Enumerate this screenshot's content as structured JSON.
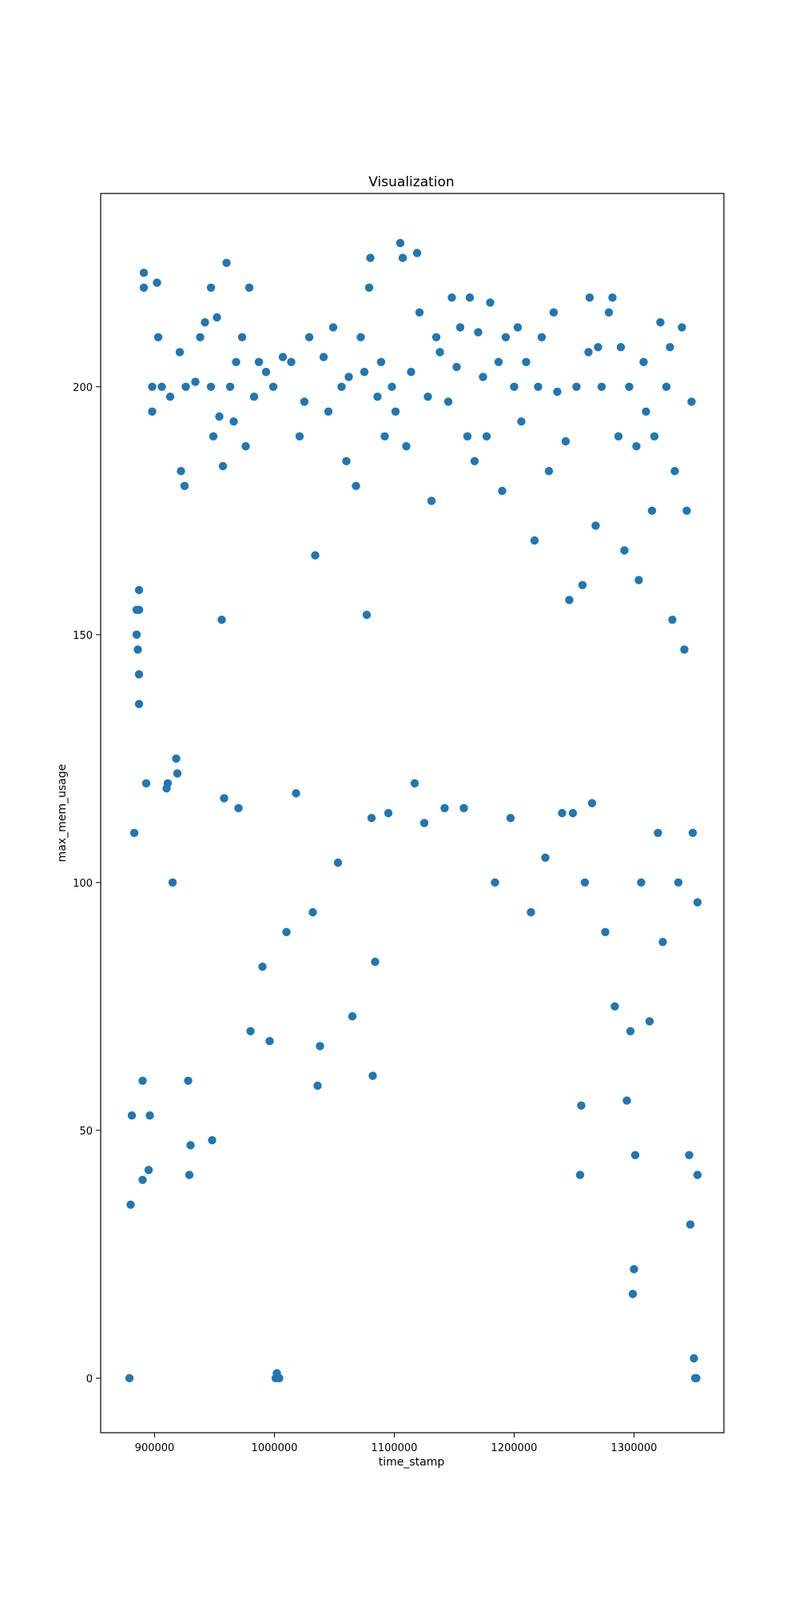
{
  "chart_data": {
    "type": "scatter",
    "title": "Visualization",
    "xlabel": "time_stamp",
    "ylabel": "max_mem_usage",
    "xlim": [
      855000,
      1375000
    ],
    "ylim": [
      -11,
      239
    ],
    "xticks": [
      900000,
      1000000,
      1100000,
      1200000,
      1300000
    ],
    "xtick_labels": [
      "900000",
      "1000000",
      "1100000",
      "1200000",
      "1300000"
    ],
    "yticks": [
      0,
      50,
      100,
      150,
      200
    ],
    "ytick_labels": [
      "0",
      "50",
      "100",
      "150",
      "200"
    ],
    "grid": false,
    "legend": "none",
    "marker_color": "#1f77b4",
    "series": [
      {
        "points": [
          [
            879000,
            0
          ],
          [
            880000,
            35
          ],
          [
            881000,
            53
          ],
          [
            883000,
            110
          ],
          [
            885000,
            150
          ],
          [
            885000,
            155
          ],
          [
            886000,
            147
          ],
          [
            887000,
            136
          ],
          [
            887000,
            142
          ],
          [
            887000,
            155
          ],
          [
            887000,
            159
          ],
          [
            890000,
            40
          ],
          [
            890000,
            60
          ],
          [
            891000,
            223
          ],
          [
            891000,
            220
          ],
          [
            893000,
            120
          ],
          [
            895000,
            42
          ],
          [
            896000,
            53
          ],
          [
            898000,
            200
          ],
          [
            898000,
            195
          ],
          [
            902000,
            221
          ],
          [
            903000,
            210
          ],
          [
            906000,
            200
          ],
          [
            910000,
            119
          ],
          [
            911000,
            120
          ],
          [
            913000,
            198
          ],
          [
            915000,
            100
          ],
          [
            918000,
            125
          ],
          [
            919000,
            122
          ],
          [
            921000,
            207
          ],
          [
            922000,
            183
          ],
          [
            925000,
            180
          ],
          [
            926000,
            200
          ],
          [
            928000,
            60
          ],
          [
            929000,
            41
          ],
          [
            930000,
            47
          ],
          [
            934000,
            201
          ],
          [
            938000,
            210
          ],
          [
            942000,
            213
          ],
          [
            947000,
            200
          ],
          [
            947000,
            220
          ],
          [
            948000,
            48
          ],
          [
            949000,
            190
          ],
          [
            952000,
            214
          ],
          [
            954000,
            194
          ],
          [
            956000,
            153
          ],
          [
            957000,
            184
          ],
          [
            958000,
            117
          ],
          [
            960000,
            225
          ],
          [
            963000,
            200
          ],
          [
            966000,
            193
          ],
          [
            968000,
            205
          ],
          [
            970000,
            115
          ],
          [
            973000,
            210
          ],
          [
            976000,
            188
          ],
          [
            979000,
            220
          ],
          [
            980000,
            70
          ],
          [
            983000,
            198
          ],
          [
            987000,
            205
          ],
          [
            990000,
            83
          ],
          [
            993000,
            203
          ],
          [
            996000,
            68
          ],
          [
            999000,
            200
          ],
          [
            1001000,
            0
          ],
          [
            1002000,
            1
          ],
          [
            1004000,
            0
          ],
          [
            1007000,
            206
          ],
          [
            1010000,
            90
          ],
          [
            1014000,
            205
          ],
          [
            1018000,
            118
          ],
          [
            1021000,
            190
          ],
          [
            1025000,
            197
          ],
          [
            1029000,
            210
          ],
          [
            1032000,
            94
          ],
          [
            1034000,
            166
          ],
          [
            1036000,
            59
          ],
          [
            1038000,
            67
          ],
          [
            1041000,
            206
          ],
          [
            1045000,
            195
          ],
          [
            1049000,
            212
          ],
          [
            1053000,
            104
          ],
          [
            1056000,
            200
          ],
          [
            1060000,
            185
          ],
          [
            1062000,
            202
          ],
          [
            1065000,
            73
          ],
          [
            1068000,
            180
          ],
          [
            1072000,
            210
          ],
          [
            1075000,
            203
          ],
          [
            1077000,
            154
          ],
          [
            1079000,
            220
          ],
          [
            1080000,
            226
          ],
          [
            1081000,
            113
          ],
          [
            1082000,
            61
          ],
          [
            1084000,
            84
          ],
          [
            1086000,
            198
          ],
          [
            1089000,
            205
          ],
          [
            1092000,
            190
          ],
          [
            1095000,
            114
          ],
          [
            1098000,
            200
          ],
          [
            1101000,
            195
          ],
          [
            1105000,
            229
          ],
          [
            1107000,
            226
          ],
          [
            1110000,
            188
          ],
          [
            1114000,
            203
          ],
          [
            1117000,
            120
          ],
          [
            1119000,
            227
          ],
          [
            1121000,
            215
          ],
          [
            1125000,
            112
          ],
          [
            1128000,
            198
          ],
          [
            1131000,
            177
          ],
          [
            1135000,
            210
          ],
          [
            1138000,
            207
          ],
          [
            1142000,
            115
          ],
          [
            1145000,
            197
          ],
          [
            1148000,
            218
          ],
          [
            1152000,
            204
          ],
          [
            1155000,
            212
          ],
          [
            1158000,
            115
          ],
          [
            1161000,
            190
          ],
          [
            1163000,
            218
          ],
          [
            1167000,
            185
          ],
          [
            1170000,
            211
          ],
          [
            1174000,
            202
          ],
          [
            1177000,
            190
          ],
          [
            1180000,
            217
          ],
          [
            1184000,
            100
          ],
          [
            1187000,
            205
          ],
          [
            1190000,
            179
          ],
          [
            1193000,
            210
          ],
          [
            1197000,
            113
          ],
          [
            1200000,
            200
          ],
          [
            1203000,
            212
          ],
          [
            1206000,
            193
          ],
          [
            1210000,
            205
          ],
          [
            1214000,
            94
          ],
          [
            1217000,
            169
          ],
          [
            1220000,
            200
          ],
          [
            1223000,
            210
          ],
          [
            1226000,
            105
          ],
          [
            1229000,
            183
          ],
          [
            1233000,
            215
          ],
          [
            1236000,
            199
          ],
          [
            1240000,
            114
          ],
          [
            1243000,
            189
          ],
          [
            1246000,
            157
          ],
          [
            1249000,
            114
          ],
          [
            1252000,
            200
          ],
          [
            1255000,
            41
          ],
          [
            1256000,
            55
          ],
          [
            1257000,
            160
          ],
          [
            1259000,
            100
          ],
          [
            1262000,
            207
          ],
          [
            1263000,
            218
          ],
          [
            1265000,
            116
          ],
          [
            1268000,
            172
          ],
          [
            1270000,
            208
          ],
          [
            1273000,
            200
          ],
          [
            1276000,
            90
          ],
          [
            1279000,
            215
          ],
          [
            1282000,
            218
          ],
          [
            1284000,
            75
          ],
          [
            1287000,
            190
          ],
          [
            1289000,
            208
          ],
          [
            1292000,
            167
          ],
          [
            1294000,
            56
          ],
          [
            1296000,
            200
          ],
          [
            1297000,
            70
          ],
          [
            1299000,
            17
          ],
          [
            1300000,
            22
          ],
          [
            1301000,
            45
          ],
          [
            1302000,
            188
          ],
          [
            1304000,
            161
          ],
          [
            1306000,
            100
          ],
          [
            1308000,
            205
          ],
          [
            1310000,
            195
          ],
          [
            1313000,
            72
          ],
          [
            1315000,
            175
          ],
          [
            1317000,
            190
          ],
          [
            1320000,
            110
          ],
          [
            1322000,
            213
          ],
          [
            1324000,
            88
          ],
          [
            1327000,
            200
          ],
          [
            1330000,
            208
          ],
          [
            1332000,
            153
          ],
          [
            1334000,
            183
          ],
          [
            1337000,
            100
          ],
          [
            1340000,
            212
          ],
          [
            1342000,
            147
          ],
          [
            1344000,
            175
          ],
          [
            1346000,
            45
          ],
          [
            1347000,
            31
          ],
          [
            1348000,
            197
          ],
          [
            1349000,
            110
          ],
          [
            1350000,
            4
          ],
          [
            1351000,
            0
          ],
          [
            1352000,
            0
          ],
          [
            1353000,
            41
          ],
          [
            1353000,
            96
          ]
        ]
      }
    ]
  }
}
